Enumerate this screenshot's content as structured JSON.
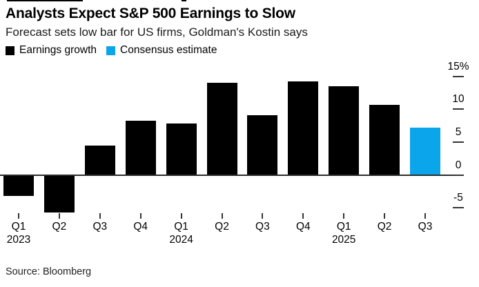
{
  "source_note": "Source: Bloomberg",
  "chart_data": {
    "type": "bar",
    "title": "Analysts Expect S&P 500 Earnings to Slow",
    "subtitle": "Forecast sets low bar for US firms, Goldman's Kostin says",
    "categories": [
      "Q1 2023",
      "Q2 2023",
      "Q3 2023",
      "Q4 2023",
      "Q1 2024",
      "Q2 2024",
      "Q3 2024",
      "Q4 2024",
      "Q1 2025",
      "Q2 2025",
      "Q3 2025"
    ],
    "series": [
      {
        "name": "Earnings growth",
        "color": "#000000",
        "values": [
          -3.1,
          -5.6,
          4.5,
          8.2,
          7.8,
          14.0,
          9.1,
          14.2,
          13.5,
          10.7,
          null
        ]
      },
      {
        "name": "Consensus estimate",
        "color": "#0ba5ec",
        "values": [
          null,
          null,
          null,
          null,
          null,
          null,
          null,
          null,
          null,
          null,
          7.2
        ]
      }
    ],
    "ylabel": "",
    "xlabel": "",
    "ylim": [
      -7,
      16
    ],
    "yticks": [
      {
        "value": 15,
        "label": "15%"
      },
      {
        "value": 10,
        "label": "10"
      },
      {
        "value": 5,
        "label": "5"
      },
      {
        "value": 0,
        "label": "0"
      },
      {
        "value": -5,
        "label": "-5"
      }
    ],
    "year_labels": [
      {
        "index": 0,
        "label": "2023"
      },
      {
        "index": 4,
        "label": "2024"
      },
      {
        "index": 8,
        "label": "2025"
      }
    ],
    "axis_side": "right",
    "grid": false,
    "legend_position": "top-left"
  }
}
